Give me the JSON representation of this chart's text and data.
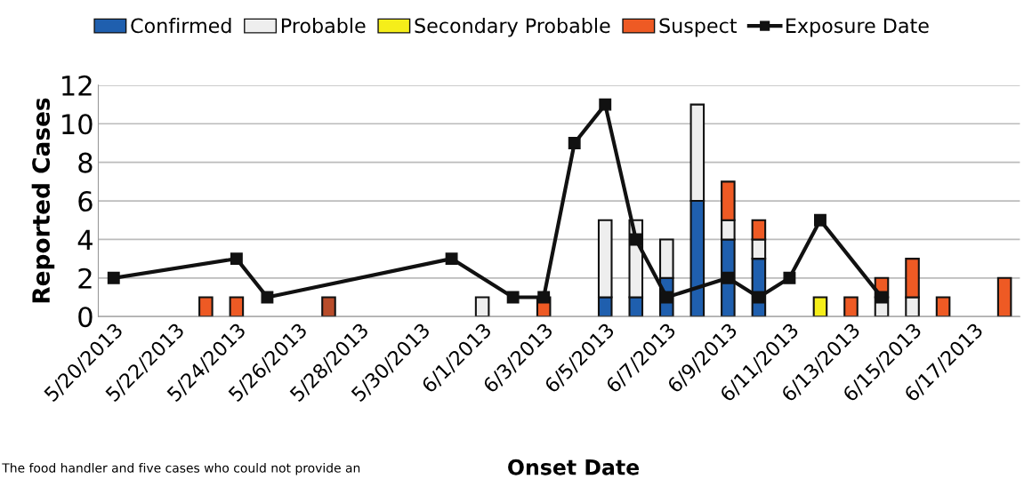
{
  "chart_data": {
    "type": "bar",
    "stacked": true,
    "xlabel": "Onset Date",
    "ylabel": "Reported Cases",
    "categories": [
      "5/20/2013",
      null,
      "5/22/2013",
      null,
      "5/24/2013",
      null,
      "5/26/2013",
      null,
      "5/28/2013",
      null,
      "5/30/2013",
      null,
      "6/1/2013",
      null,
      "6/3/2013",
      null,
      "6/5/2013",
      null,
      "6/7/2013",
      null,
      "6/9/2013",
      null,
      "6/11/2013",
      null,
      "6/13/2013",
      null,
      "6/15/2013",
      null,
      "6/17/2013",
      null
    ],
    "series": [
      {
        "name": "Confirmed",
        "color": "#1f5fae",
        "values": [
          null,
          null,
          null,
          null,
          null,
          null,
          null,
          null,
          null,
          null,
          null,
          null,
          null,
          null,
          null,
          null,
          1,
          1,
          2,
          6,
          4,
          3,
          null,
          null,
          null,
          null,
          null,
          null,
          null,
          null
        ]
      },
      {
        "name": "Probable",
        "color": "#eeeeee",
        "values": [
          null,
          null,
          null,
          null,
          null,
          null,
          null,
          null,
          null,
          null,
          null,
          null,
          1,
          null,
          null,
          null,
          4,
          4,
          2,
          5,
          1,
          1,
          null,
          null,
          null,
          1,
          1,
          null,
          null,
          null
        ]
      },
      {
        "name": "Secondary Probable",
        "color": "#f5ee1a",
        "values": [
          null,
          null,
          null,
          null,
          null,
          null,
          null,
          null,
          null,
          null,
          null,
          null,
          null,
          null,
          null,
          null,
          null,
          null,
          null,
          null,
          null,
          null,
          null,
          1,
          null,
          null,
          null,
          null,
          null,
          null
        ]
      },
      {
        "name": "Suspect",
        "color": "#ee5a24",
        "values": [
          null,
          null,
          null,
          1,
          1,
          null,
          null,
          1,
          null,
          null,
          null,
          null,
          null,
          null,
          1,
          null,
          null,
          null,
          null,
          null,
          2,
          1,
          null,
          null,
          1,
          1,
          2,
          1,
          null,
          2
        ],
        "colors": [
          null,
          null,
          null,
          "#ee5a24",
          "#ee5a24",
          null,
          null,
          "#b84c2a",
          null,
          null,
          null,
          null,
          null,
          null,
          "#ee5a24",
          null,
          null,
          null,
          null,
          null,
          "#ee5a24",
          "#ee5a24",
          null,
          null,
          "#ee5a24",
          "#ee5a24",
          "#ee5a24",
          "#ee5a24",
          null,
          "#ee5a24"
        ]
      },
      {
        "name": "Exposure Date",
        "type": "line",
        "color": "#111111",
        "marker": "square",
        "values": [
          2,
          null,
          null,
          null,
          3,
          1,
          null,
          null,
          null,
          null,
          null,
          3,
          null,
          1,
          1,
          9,
          11,
          4,
          1,
          null,
          2,
          1,
          2,
          5,
          null,
          1,
          null,
          null,
          null,
          null
        ]
      }
    ],
    "ylim": [
      0,
      12
    ],
    "yticks": [
      0,
      2,
      4,
      6,
      8,
      10,
      12
    ],
    "grid": "y",
    "legend": "top",
    "annotations": [
      "The food handler and five cases who could not provide an"
    ]
  }
}
